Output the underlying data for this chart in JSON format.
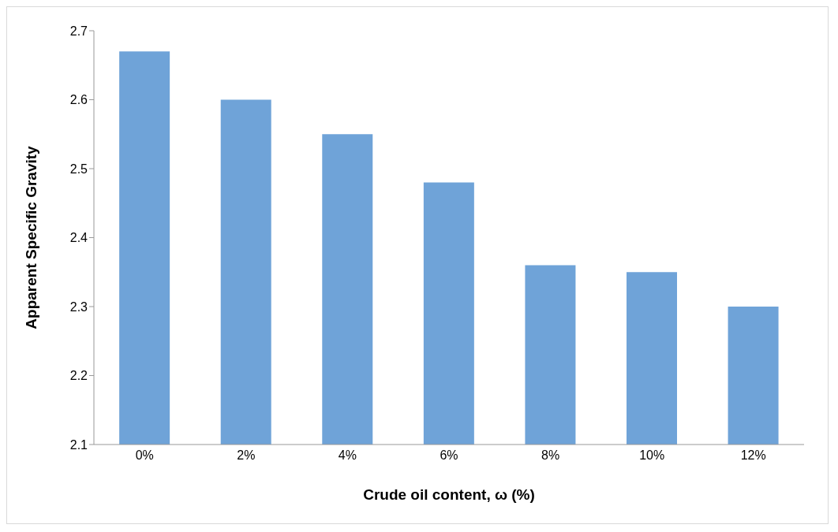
{
  "chart_data": {
    "type": "bar",
    "xlabel": "Crude oil content, ω (%)",
    "ylabel": "Apparent Specific Gravity",
    "categories": [
      "0%",
      "2%",
      "4%",
      "6%",
      "8%",
      "10%",
      "12%"
    ],
    "values": [
      2.67,
      2.6,
      2.55,
      2.48,
      2.36,
      2.35,
      2.3
    ],
    "color": "#6fa3d8",
    "ylim": [
      2.1,
      2.7
    ],
    "yticks": [
      2.1,
      2.2,
      2.3,
      2.4,
      2.5,
      2.6,
      2.7
    ]
  }
}
